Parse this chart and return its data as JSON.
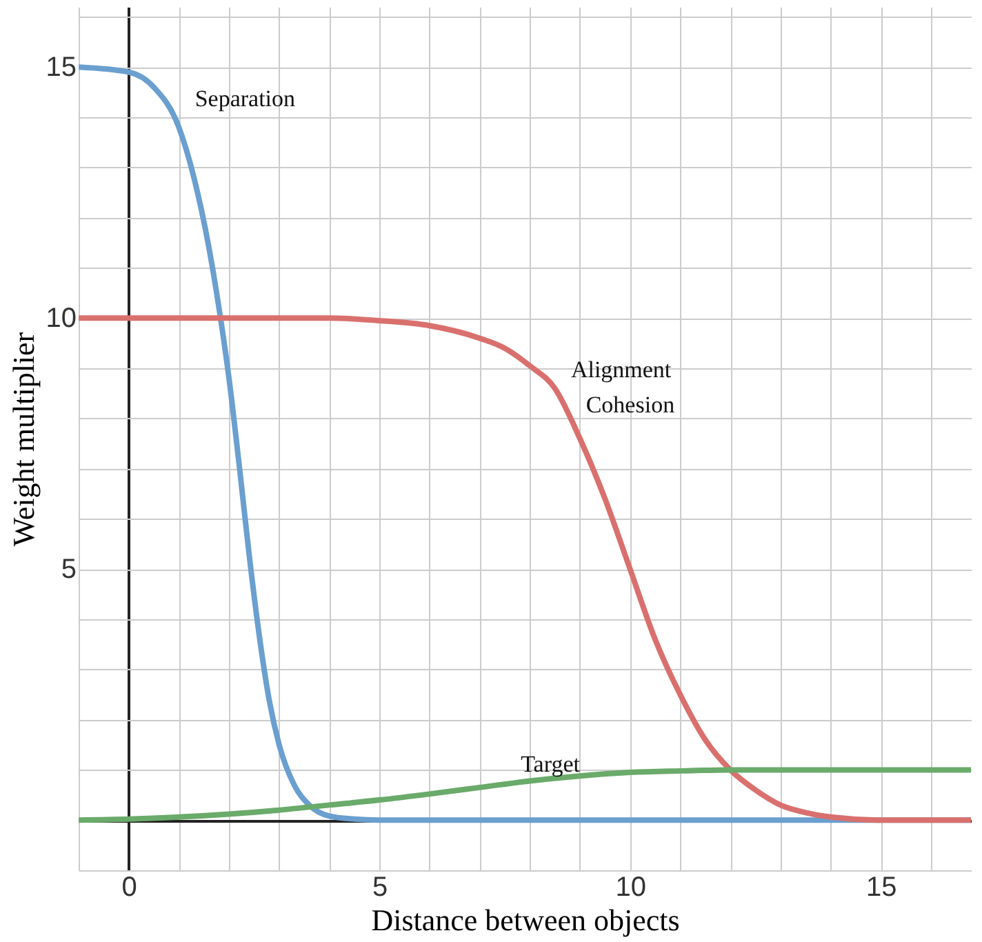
{
  "chart_data": {
    "type": "line",
    "xlabel": "Distance between objects",
    "ylabel": "Weight multiplier",
    "xlim": [
      -1,
      16.8
    ],
    "ylim": [
      -1,
      16.2
    ],
    "xticks": [
      {
        "value": -1,
        "label": null
      },
      {
        "value": 0,
        "label": "0"
      },
      {
        "value": 1,
        "label": null
      },
      {
        "value": 2,
        "label": null
      },
      {
        "value": 3,
        "label": null
      },
      {
        "value": 4,
        "label": null
      },
      {
        "value": 5,
        "label": "5"
      },
      {
        "value": 6,
        "label": null
      },
      {
        "value": 7,
        "label": null
      },
      {
        "value": 8,
        "label": null
      },
      {
        "value": 9,
        "label": null
      },
      {
        "value": 10,
        "label": "10"
      },
      {
        "value": 11,
        "label": null
      },
      {
        "value": 12,
        "label": null
      },
      {
        "value": 13,
        "label": null
      },
      {
        "value": 14,
        "label": null
      },
      {
        "value": 15,
        "label": "15"
      },
      {
        "value": 16,
        "label": null
      }
    ],
    "yticks": [
      {
        "value": -1,
        "label": null
      },
      {
        "value": 0,
        "label": null
      },
      {
        "value": 1,
        "label": null
      },
      {
        "value": 2,
        "label": null
      },
      {
        "value": 3,
        "label": null
      },
      {
        "value": 4,
        "label": null
      },
      {
        "value": 5,
        "label": "5"
      },
      {
        "value": 6,
        "label": null
      },
      {
        "value": 7,
        "label": null
      },
      {
        "value": 8,
        "label": null
      },
      {
        "value": 9,
        "label": null
      },
      {
        "value": 10,
        "label": "10"
      },
      {
        "value": 11,
        "label": null
      },
      {
        "value": 12,
        "label": null
      },
      {
        "value": 13,
        "label": null
      },
      {
        "value": 14,
        "label": null
      },
      {
        "value": 15,
        "label": "15"
      },
      {
        "value": 16,
        "label": null
      }
    ],
    "grid": true,
    "marker": "none",
    "line_style": "solid",
    "series": [
      {
        "color": "#6a9fcf",
        "x": [
          -1,
          0,
          0.5,
          1,
          1.3,
          1.6,
          1.8,
          2,
          2.2,
          2.4,
          2.6,
          2.8,
          3,
          3.3,
          3.6,
          4,
          4.5,
          5,
          8,
          12,
          16.8
        ],
        "values": [
          15,
          14.9,
          14.6,
          13.8,
          12.8,
          11.4,
          10.2,
          8.8,
          7.1,
          5.3,
          3.7,
          2.4,
          1.5,
          0.7,
          0.3,
          0.08,
          0.02,
          0,
          0,
          0,
          0
        ]
      },
      {
        "color": "#d9706e",
        "x": [
          -1,
          0,
          2,
          4,
          5,
          6,
          7,
          7.5,
          8,
          8.5,
          9,
          9.5,
          10,
          10.5,
          11,
          11.5,
          12,
          12.5,
          13,
          13.5,
          14,
          15,
          16.8
        ],
        "values": [
          10,
          10,
          10,
          10,
          9.95,
          9.85,
          9.6,
          9.4,
          9.05,
          8.6,
          7.6,
          6.4,
          5,
          3.6,
          2.5,
          1.6,
          1,
          0.6,
          0.3,
          0.15,
          0.06,
          0,
          0
        ]
      },
      {
        "color": "#6aaa6a",
        "x": [
          -1,
          0,
          1,
          2,
          3,
          4,
          5,
          6,
          7,
          8,
          9,
          10,
          11,
          12,
          13,
          14,
          16.8
        ],
        "values": [
          0,
          0.02,
          0.06,
          0.12,
          0.2,
          0.3,
          0.4,
          0.52,
          0.65,
          0.78,
          0.88,
          0.95,
          0.98,
          1,
          1,
          1,
          1
        ]
      }
    ],
    "annotations": [
      {
        "text": "Separation",
        "x": 1.1,
        "y": 14
      },
      {
        "text": "Alignment",
        "x": 8.6,
        "y": 8.6
      },
      {
        "text": "Cohesion",
        "x": 8.9,
        "y": 7.9
      },
      {
        "text": "Target",
        "x": 7.6,
        "y": 0.75
      }
    ]
  }
}
